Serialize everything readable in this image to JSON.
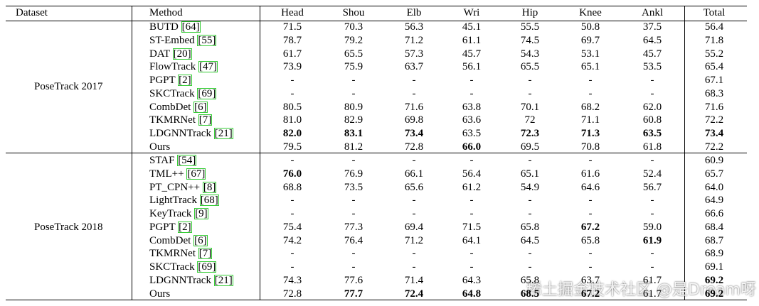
{
  "table": {
    "header": [
      "Dataset",
      "Method",
      "Head",
      "Shou",
      "Elb",
      "Wri",
      "Hip",
      "Knee",
      "Ankl",
      "Total"
    ],
    "groups": [
      {
        "dataset": "PoseTrack 2017",
        "rows": [
          {
            "method": "BUTD",
            "cite": "[64]",
            "values": [
              "71.5",
              "70.3",
              "56.3",
              "45.1",
              "55.5",
              "50.8",
              "37.5",
              "56.4"
            ],
            "bold": []
          },
          {
            "method": "ST-Embed",
            "cite": "[55]",
            "values": [
              "78.7",
              "79.2",
              "71.2",
              "61.1",
              "74.5",
              "69.7",
              "64.5",
              "71.8"
            ],
            "bold": []
          },
          {
            "method": "DAT",
            "cite": "[20]",
            "values": [
              "61.7",
              "65.5",
              "57.3",
              "45.7",
              "54.3",
              "53.1",
              "45.7",
              "55.2"
            ],
            "bold": []
          },
          {
            "method": "FlowTrack",
            "cite": "[47]",
            "values": [
              "73.9",
              "75.9",
              "63.7",
              "56.1",
              "65.5",
              "65.1",
              "53.5",
              "65.4"
            ],
            "bold": []
          },
          {
            "method": "PGPT",
            "cite": "[2]",
            "values": [
              "-",
              "-",
              "-",
              "-",
              "-",
              "-",
              "-",
              "67.1"
            ],
            "bold": []
          },
          {
            "method": "SKCTrack",
            "cite": "[69]",
            "values": [
              "-",
              "-",
              "-",
              "-",
              "-",
              "-",
              "-",
              "68.3"
            ],
            "bold": []
          },
          {
            "method": "CombDet",
            "cite": "[6]",
            "values": [
              "80.5",
              "80.9",
              "71.6",
              "63.8",
              "70.1",
              "68.2",
              "62.0",
              "71.6"
            ],
            "bold": []
          },
          {
            "method": "TKMRNet",
            "cite": "[7]",
            "values": [
              "81.0",
              "82.9",
              "69.8",
              "63.6",
              "72",
              "71.1",
              "60.8",
              "72.2"
            ],
            "bold": []
          },
          {
            "method": "LDGNNTrack",
            "cite": "[21]",
            "values": [
              "82.0",
              "83.1",
              "73.4",
              "63.5",
              "72.3",
              "71.3",
              "63.5",
              "73.4"
            ],
            "bold": [
              0,
              1,
              2,
              4,
              5,
              6,
              7
            ]
          },
          {
            "method": "Ours",
            "cite": null,
            "values": [
              "79.5",
              "81.2",
              "72.8",
              "66.0",
              "69.5",
              "70.8",
              "61.8",
              "72.2"
            ],
            "bold": [
              3
            ]
          }
        ]
      },
      {
        "dataset": "PoseTrack 2018",
        "rows": [
          {
            "method": "STAF",
            "cite": "[54]",
            "values": [
              "-",
              "-",
              "-",
              "-",
              "-",
              "-",
              "-",
              "60.9"
            ],
            "bold": []
          },
          {
            "method": "TML++",
            "cite": "[67]",
            "values": [
              "76.0",
              "76.9",
              "66.1",
              "56.4",
              "65.1",
              "61.6",
              "52.4",
              "65.7"
            ],
            "bold": [
              0
            ]
          },
          {
            "method": "PT_CPN++",
            "cite": "[8]",
            "values": [
              "68.8",
              "73.5",
              "65.6",
              "61.2",
              "54.9",
              "64.6",
              "56.7",
              "64.0"
            ],
            "bold": []
          },
          {
            "method": "LightTrack",
            "cite": "[68]",
            "values": [
              "-",
              "-",
              "-",
              "-",
              "-",
              "-",
              "-",
              "64.9"
            ],
            "bold": []
          },
          {
            "method": "KeyTrack",
            "cite": "[9]",
            "values": [
              "-",
              "-",
              "-",
              "-",
              "-",
              "-",
              "-",
              "66.6"
            ],
            "bold": []
          },
          {
            "method": "PGPT",
            "cite": "[2]",
            "values": [
              "75.4",
              "77.3",
              "69.4",
              "71.5",
              "65.8",
              "67.2",
              "59.0",
              "68.4"
            ],
            "bold": [
              5
            ]
          },
          {
            "method": "CombDet",
            "cite": "[6]",
            "values": [
              "74.2",
              "76.4",
              "71.2",
              "64.1",
              "64.5",
              "65.8",
              "61.9",
              "68.7"
            ],
            "bold": [
              6
            ]
          },
          {
            "method": "TKMRNet",
            "cite": "[7]",
            "values": [
              "-",
              "-",
              "-",
              "-",
              "-",
              "-",
              "-",
              "68.9"
            ],
            "bold": []
          },
          {
            "method": "SKCTrack",
            "cite": "[69]",
            "values": [
              "-",
              "-",
              "-",
              "-",
              "-",
              "-",
              "-",
              "69.1"
            ],
            "bold": []
          },
          {
            "method": "LDGNNTrack",
            "cite": "[21]",
            "values": [
              "74.3",
              "77.6",
              "71.4",
              "64.3",
              "65.8",
              "63.7",
              "61.7",
              "69.2"
            ],
            "bold": [
              7
            ]
          },
          {
            "method": "Ours",
            "cite": null,
            "values": [
              "72.8",
              "77.7",
              "72.4",
              "64.8",
              "68.5",
              "67.2",
              "61.7",
              "69.2"
            ],
            "bold": [
              1,
              2,
              3,
              4,
              5,
              7
            ]
          }
        ]
      }
    ]
  },
  "watermark": "稀土掘金技术社区 @是Dream呀"
}
